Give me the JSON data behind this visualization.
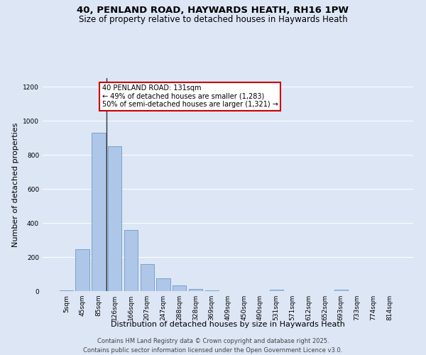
{
  "title_line1": "40, PENLAND ROAD, HAYWARDS HEATH, RH16 1PW",
  "title_line2": "Size of property relative to detached houses in Haywards Heath",
  "xlabel": "Distribution of detached houses by size in Haywards Heath",
  "ylabel": "Number of detached properties",
  "categories": [
    "5sqm",
    "45sqm",
    "85sqm",
    "126sqm",
    "166sqm",
    "207sqm",
    "247sqm",
    "288sqm",
    "328sqm",
    "369sqm",
    "409sqm",
    "450sqm",
    "490sqm",
    "531sqm",
    "571sqm",
    "612sqm",
    "652sqm",
    "693sqm",
    "733sqm",
    "774sqm",
    "814sqm"
  ],
  "values": [
    5,
    247,
    930,
    850,
    358,
    157,
    75,
    35,
    13,
    5,
    2,
    0,
    0,
    8,
    0,
    0,
    0,
    8,
    0,
    0,
    0
  ],
  "bar_color": "#aec6e8",
  "bar_edge_color": "#5a8fc0",
  "vline_color": "#333333",
  "ylim": [
    0,
    1250
  ],
  "yticks": [
    0,
    200,
    400,
    600,
    800,
    1000,
    1200
  ],
  "annotation_text": "40 PENLAND ROAD: 131sqm\n← 49% of detached houses are smaller (1,283)\n50% of semi-detached houses are larger (1,321) →",
  "annotation_box_color": "#ffffff",
  "annotation_box_edge_color": "#cc0000",
  "footer_line1": "Contains HM Land Registry data © Crown copyright and database right 2025.",
  "footer_line2": "Contains public sector information licensed under the Open Government Licence v3.0.",
  "background_color": "#dce6f5",
  "plot_bg_color": "#dce6f5",
  "title_fontsize": 9.5,
  "subtitle_fontsize": 8.5,
  "axis_label_fontsize": 8,
  "tick_fontsize": 6.5,
  "annotation_fontsize": 7,
  "footer_fontsize": 6
}
